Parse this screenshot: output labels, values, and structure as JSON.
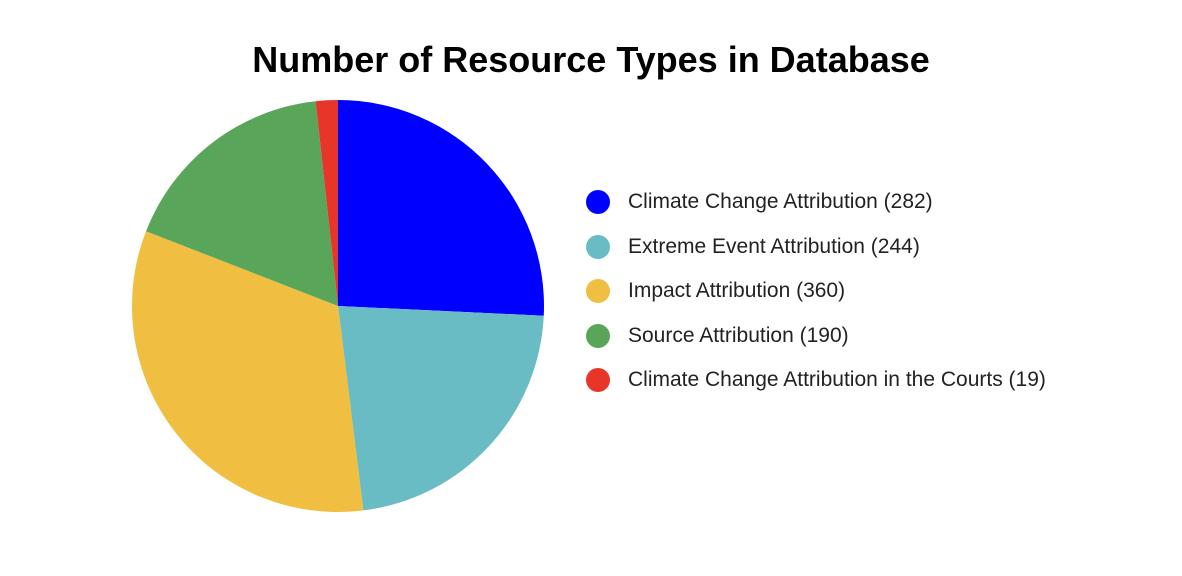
{
  "chart_data": {
    "type": "pie",
    "title": "Number of Resource Types in Database",
    "legend_position": "right",
    "slices": [
      {
        "label": "Climate Change Attribution (282)",
        "value": 282,
        "color": "#0000ff"
      },
      {
        "label": "Extreme Event Attribution (244)",
        "value": 244,
        "color": "#69bcc3"
      },
      {
        "label": "Impact Attribution (360)",
        "value": 360,
        "color": "#f0bf42"
      },
      {
        "label": "Source Attribution (190)",
        "value": 190,
        "color": "#59a65b"
      },
      {
        "label": "Climate Change Attribution in the Courts (19)",
        "value": 19,
        "color": "#e8352a"
      }
    ]
  }
}
